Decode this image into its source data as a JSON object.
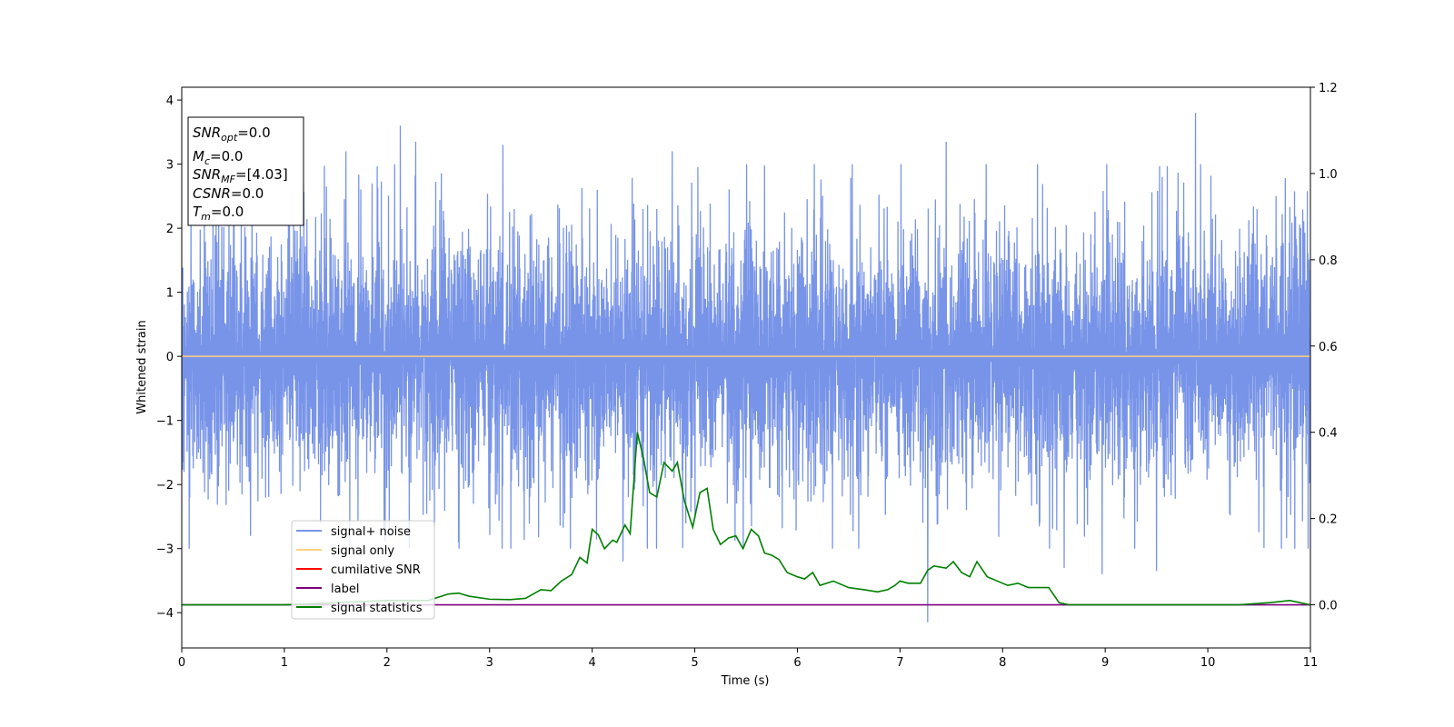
{
  "chart_data": {
    "type": "line",
    "xlabel": "Time (s)",
    "ylabel": "Whitened strain",
    "xlim": [
      0,
      11
    ],
    "ylim_left": [
      -4.55,
      4.2
    ],
    "ylim_right": [
      -0.1,
      1.2
    ],
    "x_ticks": [
      "0",
      "1",
      "2",
      "3",
      "4",
      "5",
      "6",
      "7",
      "8",
      "9",
      "10",
      "11"
    ],
    "y_ticks_left": [
      "−4",
      "−3",
      "−2",
      "−1",
      "0",
      "1",
      "2",
      "3",
      "4"
    ],
    "y_ticks_right": [
      "0.0",
      "0.2",
      "0.4",
      "0.6",
      "0.8",
      "1.0",
      "1.2"
    ],
    "grid": false,
    "legend_position": "lower-left",
    "legend": [
      {
        "label": "signal+ noise",
        "color": "#7894e8"
      },
      {
        "label": "signal only",
        "color": "#ffd080"
      },
      {
        "label": "cumilative SNR",
        "color": "#ff0000"
      },
      {
        "label": "label",
        "color": "#800080"
      },
      {
        "label": "signal statistics",
        "color": "#008000"
      }
    ],
    "info_box": [
      {
        "main": "SNR",
        "sub": "opt",
        "value": "=0.0"
      },
      {
        "main": "M",
        "sub": "c",
        "value": "=0.0"
      },
      {
        "main": "SNR",
        "sub": "MF",
        "value": "=[4.03]"
      },
      {
        "main": "CSNR",
        "sub": "",
        "value": "=0.0"
      },
      {
        "main": "T",
        "sub": "m",
        "value": "=0.0"
      }
    ],
    "series": [
      {
        "name": "signal+ noise",
        "axis": "left",
        "color": "#7894e8",
        "kind": "noise",
        "typical_envelope": [
          -1.5,
          1.6
        ],
        "peaks": [
          {
            "x": 2.13,
            "y": 3.6
          },
          {
            "x": 2.28,
            "y": 3.35
          },
          {
            "x": 1.6,
            "y": 3.2
          },
          {
            "x": 3.13,
            "y": 3.3
          },
          {
            "x": 4.78,
            "y": 3.2
          },
          {
            "x": 7.45,
            "y": 3.35
          },
          {
            "x": 9.88,
            "y": 3.8
          },
          {
            "x": 7.27,
            "y": -4.15
          },
          {
            "x": 4.3,
            "y": -3.2
          },
          {
            "x": 8.97,
            "y": -3.4
          },
          {
            "x": 9.5,
            "y": -3.35
          },
          {
            "x": 0.67,
            "y": -2.8
          },
          {
            "x": 8.6,
            "y": -3.3
          }
        ]
      },
      {
        "name": "signal only",
        "axis": "left",
        "color": "#ffd080",
        "x": [
          0,
          11
        ],
        "y": [
          0,
          0
        ]
      },
      {
        "name": "label",
        "axis": "right",
        "color": "#800080",
        "x": [
          0,
          11
        ],
        "y": [
          0,
          0
        ]
      },
      {
        "name": "signal statistics",
        "axis": "right",
        "color": "#008000",
        "x": [
          0,
          0.5,
          1,
          1.5,
          2,
          2.4,
          2.6,
          2.7,
          2.8,
          3.0,
          3.2,
          3.35,
          3.5,
          3.6,
          3.7,
          3.8,
          3.88,
          3.95,
          4.0,
          4.06,
          4.12,
          4.2,
          4.24,
          4.32,
          4.37,
          4.44,
          4.5,
          4.56,
          4.63,
          4.7,
          4.78,
          4.83,
          4.9,
          4.98,
          5.05,
          5.12,
          5.18,
          5.25,
          5.33,
          5.4,
          5.47,
          5.55,
          5.62,
          5.68,
          5.75,
          5.82,
          5.9,
          6.0,
          6.07,
          6.15,
          6.22,
          6.35,
          6.5,
          6.65,
          6.78,
          6.88,
          6.95,
          7.0,
          7.08,
          7.2,
          7.27,
          7.33,
          7.45,
          7.52,
          7.6,
          7.68,
          7.75,
          7.85,
          7.95,
          8.05,
          8.15,
          8.25,
          8.35,
          8.45,
          8.55,
          8.65,
          8.85,
          9.05,
          9.4,
          9.8,
          10.3,
          10.6,
          10.8,
          11.0
        ],
        "y": [
          0.0,
          0.0,
          0.0,
          0.005,
          0.01,
          0.01,
          0.025,
          0.027,
          0.02,
          0.013,
          0.012,
          0.015,
          0.035,
          0.033,
          0.055,
          0.07,
          0.11,
          0.097,
          0.175,
          0.162,
          0.13,
          0.15,
          0.145,
          0.185,
          0.165,
          0.4,
          0.34,
          0.26,
          0.25,
          0.33,
          0.31,
          0.33,
          0.24,
          0.18,
          0.26,
          0.27,
          0.175,
          0.14,
          0.155,
          0.16,
          0.13,
          0.175,
          0.16,
          0.12,
          0.115,
          0.105,
          0.075,
          0.065,
          0.06,
          0.075,
          0.045,
          0.055,
          0.04,
          0.035,
          0.03,
          0.035,
          0.045,
          0.055,
          0.05,
          0.05,
          0.08,
          0.09,
          0.085,
          0.1,
          0.075,
          0.065,
          0.1,
          0.065,
          0.055,
          0.045,
          0.05,
          0.04,
          0.04,
          0.04,
          0.005,
          0.0,
          0.0,
          0.0,
          0.0,
          0.0,
          0.0,
          0.005,
          0.01,
          0.0
        ]
      }
    ]
  }
}
